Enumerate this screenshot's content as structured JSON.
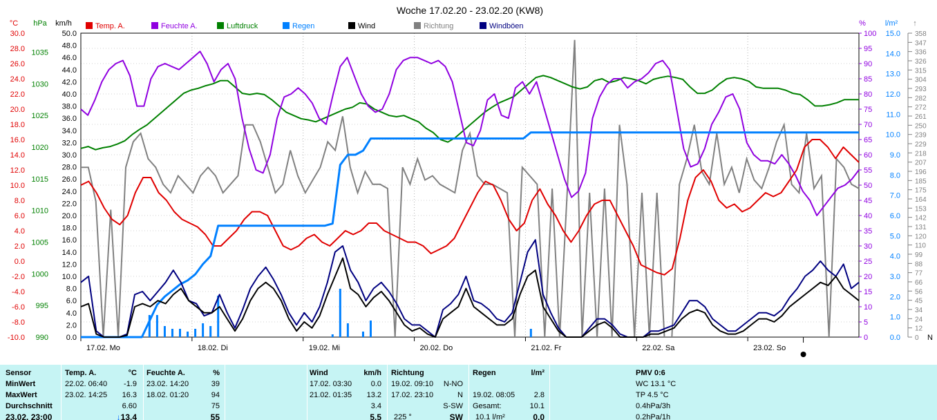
{
  "chart_data": {
    "type": "line",
    "title": "Woche 17.02.20 - 23.02.20 (KW8)",
    "x_labels": [
      "17.02. Mo",
      "18.02. Di",
      "19.02. Mi",
      "20.02. Do",
      "21.02. Fr",
      "22.02. Sa",
      "23.02. So"
    ],
    "legend": [
      {
        "name": "Temp. A.",
        "color": "#e00000"
      },
      {
        "name": "Feuchte A.",
        "color": "#9000e0"
      },
      {
        "name": "Luftdruck",
        "color": "#008000"
      },
      {
        "name": "Regen",
        "color": "#0080ff"
      },
      {
        "name": "Wind",
        "color": "#000000"
      },
      {
        "name": "Richtung",
        "color": "#808080"
      },
      {
        "name": "Windböen",
        "color": "#000080"
      }
    ],
    "axes": {
      "temp": {
        "unit": "°C",
        "min": -10,
        "max": 30,
        "step": 2,
        "color": "#e00000"
      },
      "pressure": {
        "unit": "hPa",
        "min": 990,
        "max": 1038,
        "ticks": [
          990,
          995,
          1000,
          1005,
          1010,
          1015,
          1020,
          1025,
          1030,
          1035
        ],
        "color": "#008000"
      },
      "wind": {
        "unit": "km/h",
        "min": 0,
        "max": 50,
        "step": 2,
        "color": "#000000"
      },
      "humidity": {
        "unit": "%",
        "min": 0,
        "max": 100,
        "step": 5,
        "color": "#9000e0"
      },
      "rain": {
        "unit": "l/m²",
        "min": 0,
        "max": 15,
        "step": 1,
        "color": "#0080ff"
      },
      "direction": {
        "unit": "°",
        "ticks": [
          0,
          12,
          24,
          34,
          45,
          56,
          66,
          77,
          88,
          99,
          110,
          120,
          131,
          142,
          153,
          164,
          175,
          185,
          196,
          207,
          218,
          229,
          239,
          250,
          261,
          272,
          282,
          293,
          304,
          315,
          326,
          336,
          347,
          358
        ],
        "color": "#808080"
      }
    },
    "series": [
      {
        "name": "Temp. A.",
        "axis": "temp",
        "color": "#e00000",
        "values": [
          10,
          10.5,
          9,
          7,
          5.5,
          4.8,
          6,
          9,
          11,
          11,
          9,
          8,
          6.5,
          5.5,
          5,
          4.5,
          3.5,
          2,
          2,
          3,
          4,
          5.5,
          6.5,
          6.5,
          6,
          4,
          2,
          1.5,
          2,
          3,
          3.5,
          2.5,
          2,
          3,
          4,
          3.5,
          4,
          5,
          5,
          4,
          3.5,
          3,
          2.5,
          2.5,
          2,
          1,
          1.5,
          2,
          3,
          5,
          7,
          9,
          10.5,
          10,
          8,
          5.5,
          4,
          5,
          8,
          9.5,
          7.5,
          6,
          4,
          2.5,
          4,
          6,
          7.5,
          8,
          8,
          6,
          4,
          2,
          -0.5,
          -1,
          -1.5,
          -1.8,
          -1,
          3,
          8,
          11,
          12,
          10.5,
          8,
          7,
          7.5,
          6.5,
          7,
          8,
          9,
          8.5,
          9,
          10.5,
          12,
          15,
          16,
          16,
          15,
          13.5,
          15,
          14,
          13
        ]
      },
      {
        "name": "Feuchte A.",
        "axis": "humidity",
        "color": "#9000e0",
        "values": [
          75,
          73,
          78,
          84,
          88,
          90,
          91,
          86,
          76,
          76,
          85,
          89,
          90,
          89,
          88,
          90,
          92,
          94,
          90,
          84,
          88,
          90,
          85,
          72,
          62,
          55,
          54,
          60,
          72,
          79,
          80,
          82,
          80,
          77,
          72,
          70,
          80,
          89,
          92,
          86,
          80,
          76,
          74,
          75,
          80,
          88,
          91,
          92,
          92,
          91,
          90,
          91,
          89,
          84,
          74,
          64,
          63,
          68,
          78,
          80,
          73,
          72,
          82,
          84,
          80,
          84,
          76,
          68,
          60,
          52,
          46,
          48,
          54,
          72,
          79,
          83,
          85,
          85,
          82,
          84,
          85,
          87,
          90,
          91,
          88,
          75,
          62,
          56,
          57,
          62,
          70,
          74,
          79,
          80,
          75,
          64,
          60,
          58,
          58,
          57,
          60,
          57,
          53,
          48,
          45,
          40,
          43,
          46,
          49,
          50,
          52,
          55
        ]
      },
      {
        "name": "Luftdruck",
        "axis": "pressure",
        "color": "#008000",
        "values": [
          1019.8,
          1020.1,
          1019.6,
          1019.9,
          1020.1,
          1020.5,
          1021,
          1022,
          1022.8,
          1023.5,
          1024.5,
          1025.5,
          1026.5,
          1027.5,
          1028.5,
          1029,
          1029.3,
          1029.7,
          1030,
          1030.5,
          1030.5,
          1029.5,
          1028.5,
          1028.3,
          1028.5,
          1028.3,
          1027.5,
          1026.5,
          1025.5,
          1025,
          1024.5,
          1024.3,
          1024,
          1024.5,
          1025,
          1025.5,
          1026,
          1026.3,
          1027,
          1026.8,
          1026,
          1025.5,
          1025,
          1024.8,
          1025,
          1024.5,
          1024,
          1023,
          1022.3,
          1021.2,
          1020.8,
          1021.5,
          1022.5,
          1023.5,
          1024.5,
          1025.5,
          1026.3,
          1027,
          1027.5,
          1028,
          1029,
          1030,
          1031,
          1031.3,
          1031,
          1030.5,
          1030,
          1029.5,
          1029.2,
          1029.5,
          1030.5,
          1030.8,
          1030.2,
          1030.5,
          1031,
          1030.8,
          1030.5,
          1030,
          1030.7,
          1031,
          1031.2,
          1031,
          1030.7,
          1029.5,
          1028.5,
          1028.5,
          1029,
          1030,
          1030.8,
          1031,
          1030.8,
          1030.4,
          1029.5,
          1029.3,
          1029.3,
          1029.3,
          1029,
          1028.5,
          1028.3,
          1027.5,
          1026.5,
          1026.5,
          1026.7,
          1027,
          1027.5,
          1027.5,
          1027.5
        ]
      },
      {
        "name": "Regen",
        "axis": "rain",
        "color": "#0080ff",
        "values": [
          0,
          0,
          0,
          0,
          0,
          0,
          0,
          0,
          0,
          0.8,
          1.6,
          2,
          2.3,
          2.6,
          2.8,
          3.1,
          3.6,
          4,
          5.5,
          5.5,
          5.5,
          5.5,
          5.5,
          5.5,
          5.5,
          5.5,
          5.5,
          5.5,
          5.5,
          5.5,
          5.5,
          5.5,
          5.5,
          5.6,
          8.5,
          9,
          9,
          9.2,
          9.8,
          9.8,
          9.8,
          9.8,
          9.8,
          9.8,
          9.8,
          9.8,
          9.8,
          9.8,
          9.8,
          9.8,
          9.8,
          9.8,
          9.8,
          9.8,
          9.8,
          9.8,
          9.8,
          9.8,
          9.8,
          10.1,
          10.1,
          10.1,
          10.1,
          10.1,
          10.1,
          10.1,
          10.1,
          10.1,
          10.1,
          10.1,
          10.1,
          10.1,
          10.1,
          10.1,
          10.1,
          10.1,
          10.1,
          10.1,
          10.1,
          10.1,
          10.1,
          10.1,
          10.1,
          10.1,
          10.1,
          10.1,
          10.1,
          10.1,
          10.1,
          10.1,
          10.1,
          10.1,
          10.1,
          10.1,
          10.1,
          10.1,
          10.1,
          10.1,
          10.1,
          10.1,
          10.1,
          10.1,
          10.1
        ]
      },
      {
        "name": "Wind",
        "axis": "wind",
        "color": "#000000",
        "values": [
          5,
          5.5,
          0.5,
          0,
          0,
          0,
          0.3,
          5,
          5.5,
          5,
          6,
          5.5,
          7,
          8,
          6,
          5,
          4,
          4,
          5,
          3,
          1,
          3,
          6,
          8,
          9,
          8,
          6,
          3,
          1,
          2.5,
          1.5,
          3.5,
          7,
          10,
          13,
          8,
          7,
          5,
          6.5,
          7.5,
          6,
          4,
          2,
          1,
          1.5,
          0.5,
          0,
          3,
          4,
          5,
          8,
          5,
          4,
          3,
          2,
          2,
          3,
          7,
          10,
          11,
          5,
          3,
          1,
          0,
          0,
          0,
          1,
          2,
          2.5,
          1.5,
          0,
          0,
          0,
          0,
          0.5,
          0.5,
          1,
          1.5,
          3,
          4,
          4.5,
          4,
          2,
          1,
          0.5,
          0.5,
          1,
          2,
          3,
          3,
          2.5,
          3.5,
          5,
          6,
          7,
          8,
          9,
          8.5,
          10,
          8,
          7,
          6
        ]
      },
      {
        "name": "Windböen",
        "axis": "wind",
        "color": "#000080",
        "values": [
          9,
          10,
          1,
          0,
          0,
          0,
          0.5,
          7,
          7.5,
          6,
          7.5,
          9,
          11,
          9,
          6,
          5.5,
          3.5,
          4,
          7,
          4,
          1.5,
          4.5,
          8,
          10,
          11.5,
          9.5,
          7,
          4,
          2,
          4,
          2.5,
          5,
          9,
          14,
          15,
          11,
          9,
          6,
          8,
          9,
          7.5,
          5.5,
          3,
          2,
          2,
          1,
          0,
          4.5,
          5.5,
          7,
          10,
          6,
          5.5,
          4.5,
          3,
          2.5,
          4,
          9,
          14,
          16,
          7,
          4,
          1.5,
          0,
          0,
          0,
          1.5,
          3,
          3,
          2,
          0.5,
          0,
          0,
          0,
          1,
          1,
          1.5,
          2,
          4,
          6,
          6,
          5,
          3,
          2,
          1,
          1,
          2,
          3,
          4,
          4,
          3.5,
          4.5,
          6.5,
          8,
          10,
          11,
          12.5,
          11,
          10,
          12,
          8,
          9
        ]
      },
      {
        "name": "Richtung",
        "axis": "direction",
        "color": "#808080",
        "values": [
          200,
          200,
          160,
          0,
          150,
          0,
          200,
          230,
          240,
          210,
          200,
          180,
          170,
          190,
          180,
          170,
          190,
          200,
          190,
          170,
          180,
          190,
          250,
          250,
          230,
          200,
          170,
          180,
          220,
          190,
          170,
          185,
          200,
          230,
          220,
          260,
          200,
          170,
          195,
          180,
          180,
          175,
          0,
          200,
          180,
          210,
          185,
          190,
          180,
          175,
          170,
          220,
          240,
          190,
          180,
          180,
          175,
          170,
          0,
          200,
          190,
          180,
          0,
          175,
          0,
          170,
          350,
          0,
          170,
          0,
          175,
          0,
          250,
          180,
          0,
          170,
          0,
          170,
          0,
          0,
          180,
          210,
          250,
          195,
          180,
          240,
          180,
          200,
          170,
          210,
          185,
          175,
          200,
          230,
          250,
          180,
          170,
          240,
          175,
          190,
          0,
          210,
          200,
          180,
          175
        ]
      }
    ],
    "direction_labels": {
      "north": "N"
    }
  },
  "table": {
    "headers": {
      "sensor": "Sensor",
      "temp": "Temp. A.",
      "temp_unit": "°C",
      "hum": "Feuchte A.",
      "hum_unit": "%",
      "wind": "Wind",
      "wind_unit": "km/h",
      "dir": "Richtung",
      "rain": "Regen",
      "rain_unit": "l/m²",
      "pmv": "PMV 0:6"
    },
    "rows": {
      "min": {
        "label": "MinWert",
        "temp_time": "22.02.  06:40",
        "temp_val": "-1.9",
        "hum_time": "23.02.  14:20",
        "hum_val": "39",
        "wind_time": "17.02.  03:30",
        "wind_val": "0.0",
        "dir_time": "19.02.  09:10",
        "dir_val": "N-NO",
        "pmv": "WC 13.1 °C"
      },
      "max": {
        "label": "MaxWert",
        "temp_time": "23.02.  14:25",
        "temp_val": "16.3",
        "hum_time": "18.02.  01:20",
        "hum_val": "94",
        "wind_time": "21.02.  01:35",
        "wind_val": "13.2",
        "dir_time": "17.02.  23:10",
        "dir_val": "N",
        "rain_time": "19.02.  08:05",
        "rain_val": "2.8",
        "pmv": "TP 4.5 °C"
      },
      "avg": {
        "label": "Durchschnitt",
        "temp_val": "6.60",
        "hum_val": "75",
        "wind_val": "3.4",
        "dir_val": "S-SW",
        "rain_label": "Gesamt:",
        "rain_val": "10.1",
        "pmv": "0.4hPa/3h"
      },
      "cur": {
        "label": "23.02.  23:00",
        "temp_val": "13.4",
        "temp_arrow": "↓",
        "hum_val": "55",
        "wind_val": "5.5",
        "dir_deg": "225 °",
        "dir_val": "SW",
        "rain_label": "10.1 l/m²",
        "rain_val": "0.0",
        "pmv": "0.2hPa/1h"
      }
    }
  }
}
